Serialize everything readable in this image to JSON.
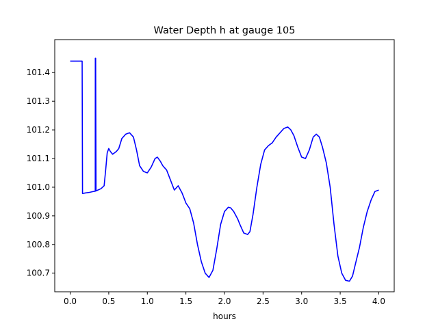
{
  "chart_data": {
    "type": "line",
    "title": "Water Depth h at gauge 105",
    "xlabel": "hours",
    "ylabel": "",
    "xlim": [
      -0.2,
      4.2
    ],
    "ylim": [
      100.635,
      101.515
    ],
    "xticks": [
      0.0,
      0.5,
      1.0,
      1.5,
      2.0,
      2.5,
      3.0,
      3.5,
      4.0
    ],
    "xtick_labels": [
      "0.0",
      "0.5",
      "1.0",
      "1.5",
      "2.0",
      "2.5",
      "3.0",
      "3.5",
      "4.0"
    ],
    "yticks": [
      100.7,
      100.8,
      100.9,
      101.0,
      101.1,
      101.2,
      101.3,
      101.4
    ],
    "ytick_labels": [
      "100.7",
      "100.8",
      "100.9",
      "101.0",
      "101.1",
      "101.2",
      "101.3",
      "101.4"
    ],
    "grid": false,
    "series": [
      {
        "color": "#0000ff",
        "x": [
          0.0,
          0.15,
          0.155,
          0.16,
          0.2,
          0.25,
          0.3,
          0.325,
          0.326,
          0.33,
          0.335,
          0.4,
          0.44,
          0.46,
          0.48,
          0.5,
          0.52,
          0.55,
          0.6,
          0.63,
          0.67,
          0.72,
          0.77,
          0.82,
          0.86,
          0.9,
          0.95,
          1.0,
          1.05,
          1.1,
          1.13,
          1.17,
          1.2,
          1.25,
          1.3,
          1.35,
          1.4,
          1.45,
          1.5,
          1.55,
          1.6,
          1.65,
          1.7,
          1.75,
          1.8,
          1.85,
          1.9,
          1.95,
          2.0,
          2.05,
          2.08,
          2.12,
          2.17,
          2.2,
          2.25,
          2.3,
          2.33,
          2.37,
          2.42,
          2.47,
          2.52,
          2.57,
          2.62,
          2.67,
          2.72,
          2.77,
          2.82,
          2.86,
          2.9,
          2.95,
          3.0,
          3.05,
          3.1,
          3.15,
          3.19,
          3.23,
          3.27,
          3.32,
          3.37,
          3.42,
          3.47,
          3.52,
          3.57,
          3.62,
          3.66,
          3.7,
          3.75,
          3.8,
          3.85,
          3.9,
          3.95,
          4.0
        ],
        "y": [
          101.44,
          101.44,
          101.44,
          100.978,
          100.98,
          100.982,
          100.985,
          100.986,
          101.45,
          101.45,
          100.987,
          100.995,
          101.005,
          101.06,
          101.12,
          101.135,
          101.125,
          101.115,
          101.125,
          101.135,
          101.17,
          101.185,
          101.19,
          101.175,
          101.13,
          101.075,
          101.055,
          101.05,
          101.07,
          101.1,
          101.105,
          101.09,
          101.075,
          101.06,
          101.025,
          100.99,
          101.005,
          100.98,
          100.945,
          100.925,
          100.875,
          100.8,
          100.74,
          100.7,
          100.685,
          100.71,
          100.785,
          100.87,
          100.915,
          100.93,
          100.928,
          100.915,
          100.89,
          100.87,
          100.84,
          100.835,
          100.845,
          100.905,
          101.0,
          101.08,
          101.13,
          101.145,
          101.155,
          101.175,
          101.19,
          101.205,
          101.21,
          101.2,
          101.18,
          101.14,
          101.105,
          101.1,
          101.13,
          101.175,
          101.185,
          101.175,
          101.14,
          101.085,
          101.0,
          100.87,
          100.76,
          100.7,
          100.675,
          100.672,
          100.69,
          100.735,
          100.79,
          100.86,
          100.915,
          100.955,
          100.985,
          100.99
        ]
      }
    ]
  }
}
